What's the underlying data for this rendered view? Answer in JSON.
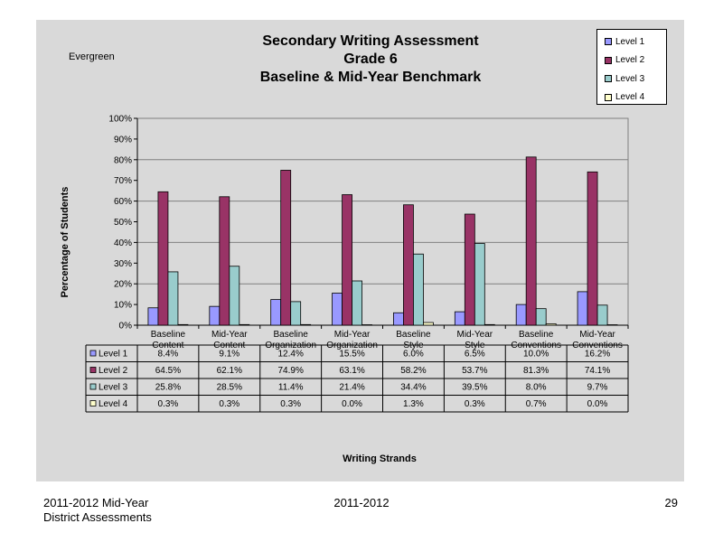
{
  "chart_data": {
    "type": "bar",
    "title_lines": [
      "Secondary Writing Assessment",
      "Grade 6",
      "Baseline & Mid-Year Benchmark"
    ],
    "subtitle": "Evergreen",
    "xlabel": "Writing Strands",
    "ylabel": "Percentage of Students",
    "ylim": [
      0,
      100
    ],
    "yticks": [
      "0%",
      "10%",
      "20%",
      "30%",
      "40%",
      "50%",
      "60%",
      "70%",
      "80%",
      "90%",
      "100%"
    ],
    "grid": true,
    "legend_position": "top-right",
    "categories": [
      [
        "Baseline",
        "Content"
      ],
      [
        "Mid-Year",
        "Content"
      ],
      [
        "Baseline",
        "Organization"
      ],
      [
        "Mid-Year",
        "Organization"
      ],
      [
        "Baseline",
        "Style"
      ],
      [
        "Mid-Year",
        "Style"
      ],
      [
        "Baseline",
        "Conventions"
      ],
      [
        "Mid-Year",
        "Conventions"
      ]
    ],
    "series": [
      {
        "name": "Level 1",
        "color": "#9999ff",
        "values": [
          8.4,
          9.1,
          12.4,
          15.5,
          6.0,
          6.5,
          10.0,
          16.2
        ],
        "labels": [
          "8.4%",
          "9.1%",
          "12.4%",
          "15.5%",
          "6.0%",
          "6.5%",
          "10.0%",
          "16.2%"
        ]
      },
      {
        "name": "Level 2",
        "color": "#993366",
        "values": [
          64.5,
          62.1,
          74.9,
          63.1,
          58.2,
          53.7,
          81.3,
          74.1
        ],
        "labels": [
          "64.5%",
          "62.1%",
          "74.9%",
          "63.1%",
          "58.2%",
          "53.7%",
          "81.3%",
          "74.1%"
        ]
      },
      {
        "name": "Level 3",
        "color": "#99cccc",
        "values": [
          25.8,
          28.5,
          11.4,
          21.4,
          34.4,
          39.5,
          8.0,
          9.7
        ],
        "labels": [
          "25.8%",
          "28.5%",
          "11.4%",
          "21.4%",
          "34.4%",
          "39.5%",
          "8.0%",
          "9.7%"
        ]
      },
      {
        "name": "Level 4",
        "color": "#ffffcc",
        "values": [
          0.3,
          0.3,
          0.3,
          0.0,
          1.3,
          0.3,
          0.7,
          0.0
        ],
        "labels": [
          "0.3%",
          "0.3%",
          "0.3%",
          "0.0%",
          "1.3%",
          "0.3%",
          "0.7%",
          "0.0%"
        ]
      }
    ]
  },
  "footer": {
    "left_line1": "2011-2012  Mid-Year",
    "left_line2": "District Assessments",
    "center": "2011-2012",
    "page_number": "29"
  }
}
